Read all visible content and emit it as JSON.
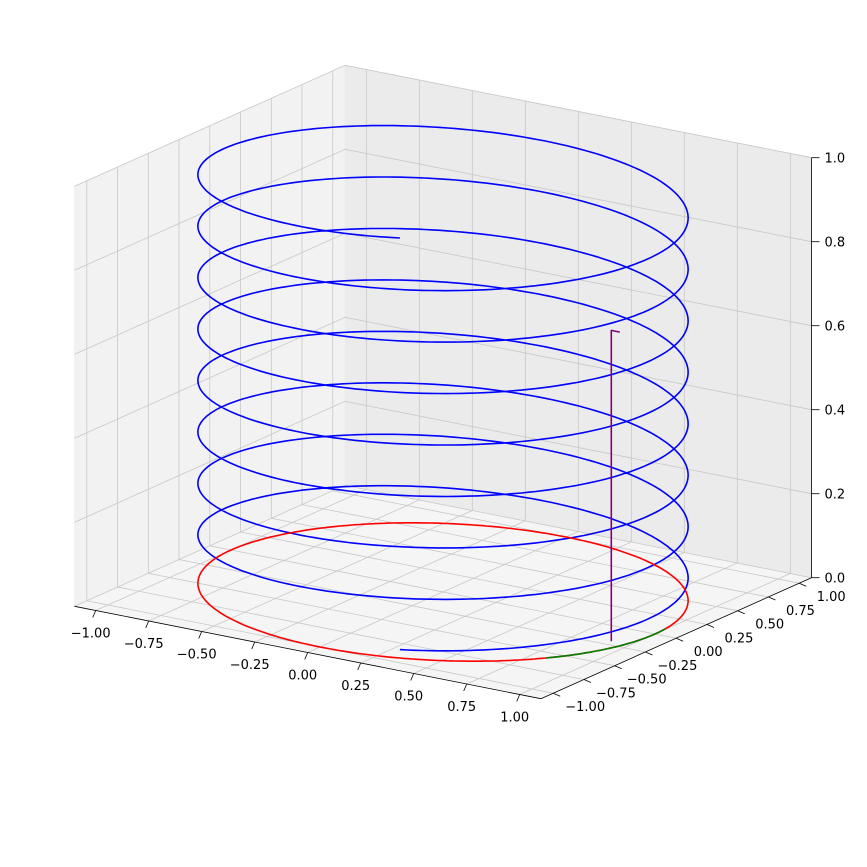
{
  "chart_data": {
    "type": "line3d",
    "title": "",
    "xlabel": "",
    "ylabel": "",
    "zlabel": "",
    "xlim": [
      -1.1,
      1.1
    ],
    "ylim": [
      -1.1,
      1.1
    ],
    "zlim": [
      0,
      1
    ],
    "grid": true,
    "legend": "none",
    "x_ticks": [
      "−1.00",
      "−0.75",
      "−0.50",
      "−0.25",
      "0.00",
      "0.25",
      "0.50",
      "0.75",
      "1.00"
    ],
    "y_ticks": [
      "−1.00",
      "−0.75",
      "−0.50",
      "−0.25",
      "0.00",
      "0.25",
      "0.50",
      "0.75",
      "1.00"
    ],
    "z_ticks": [
      "0.0",
      "0.2",
      "0.4",
      "0.6",
      "0.8",
      "1.0"
    ],
    "series": [
      {
        "kind": "helix",
        "color": "#0000ff",
        "description_values": {
          "radius": 1.0,
          "turns": 8,
          "z_start": 0.02,
          "z_end": 1.0,
          "theta_start_deg": -70
        }
      },
      {
        "kind": "circle",
        "color": "#ff0000",
        "description_values": {
          "radius": 1.0,
          "z": 0
        }
      },
      {
        "kind": "arc",
        "color": "#008000",
        "description_values": {
          "radius": 1.0,
          "z": 0,
          "theta_from_deg": -35,
          "theta_to_deg": 5
        }
      },
      {
        "kind": "polyline",
        "color": "#800080",
        "points": [
          {
            "x": 0.91,
            "y": -0.2,
            "z": 0.0
          },
          {
            "x": 0.91,
            "y": -0.2,
            "z": 0.74
          },
          {
            "x": 0.95,
            "y": -0.2,
            "z": 0.74
          }
        ]
      }
    ]
  }
}
